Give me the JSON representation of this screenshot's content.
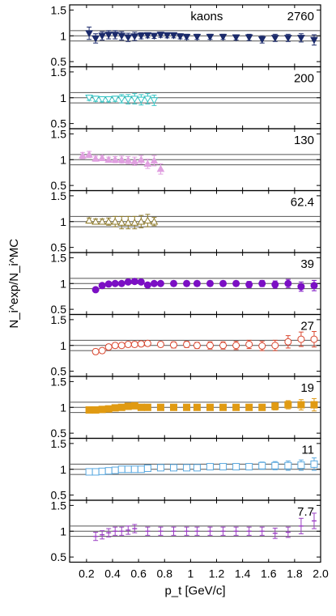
{
  "chart_data": {
    "type": "scatter",
    "title": "",
    "xlabel": "p_t [GeV/c]",
    "ylabel": "N_i^exp/N_i^MC",
    "xlim": [
      0.07,
      2.0
    ],
    "ylim": [
      0.4,
      1.6
    ],
    "x_ticks": [
      0.2,
      0.4,
      0.6,
      0.8,
      1.0,
      1.2,
      1.4,
      1.6,
      1.8,
      2.0
    ],
    "x_tick_labels": [
      "0.2",
      "0.4",
      "0.6",
      "0.8",
      "1",
      "1.2",
      "1.4",
      "1.6",
      "1.8",
      "2.0"
    ],
    "y_ticks": [
      0.5,
      1.0,
      1.5
    ],
    "y_tick_labels": [
      "0.5",
      "1",
      "1.5"
    ],
    "reference_lines": [
      0.9,
      1.0,
      1.1
    ],
    "species_label": "kaons",
    "panels": [
      {
        "label": "2760",
        "color": "#1b2a6b",
        "marker": "triangle-down-filled",
        "x": [
          0.22,
          0.27,
          0.32,
          0.37,
          0.42,
          0.47,
          0.52,
          0.57,
          0.62,
          0.67,
          0.72,
          0.77,
          0.82,
          0.87,
          0.92,
          0.97,
          1.05,
          1.15,
          1.25,
          1.35,
          1.45,
          1.55,
          1.65,
          1.75,
          1.85,
          1.95
        ],
        "y": [
          1.05,
          0.95,
          1.0,
          1.02,
          1.02,
          1.0,
          0.97,
          0.99,
          1.0,
          1.01,
          1.0,
          1.02,
          1.01,
          1.01,
          0.99,
          0.98,
          0.98,
          0.98,
          0.98,
          0.97,
          0.97,
          0.93,
          0.96,
          0.96,
          0.96,
          0.92
        ],
        "err": [
          0.12,
          0.09,
          0.08,
          0.08,
          0.08,
          0.08,
          0.08,
          0.08,
          0.06,
          0.05,
          0.05,
          0.05,
          0.05,
          0.05,
          0.05,
          0.05,
          0.05,
          0.05,
          0.05,
          0.05,
          0.06,
          0.07,
          0.07,
          0.07,
          0.08,
          0.1
        ]
      },
      {
        "label": "200",
        "color": "#33c4c4",
        "marker": "triangle-down-open",
        "x": [
          0.22,
          0.27,
          0.32,
          0.37,
          0.42,
          0.47,
          0.52,
          0.57,
          0.62,
          0.67,
          0.72
        ],
        "y": [
          1.0,
          0.98,
          0.97,
          0.97,
          0.98,
          0.98,
          0.97,
          0.98,
          0.96,
          0.98,
          0.95
        ],
        "err": [
          0.05,
          0.05,
          0.05,
          0.05,
          0.05,
          0.08,
          0.09,
          0.1,
          0.1,
          0.1,
          0.1
        ]
      },
      {
        "label": "130",
        "color": "#e0a0e0",
        "marker": "triangle-up-filled",
        "x": [
          0.17,
          0.22,
          0.27,
          0.32,
          0.37,
          0.42,
          0.47,
          0.52,
          0.57,
          0.62,
          0.67,
          0.72,
          0.77
        ],
        "y": [
          1.08,
          1.1,
          1.02,
          1.03,
          1.0,
          1.0,
          1.0,
          0.99,
          0.97,
          1.0,
          0.92,
          0.98,
          0.82
        ],
        "err": [
          0.06,
          0.06,
          0.05,
          0.05,
          0.05,
          0.06,
          0.07,
          0.07,
          0.08,
          0.08,
          0.09,
          0.1,
          0.1
        ]
      },
      {
        "label": "62.4",
        "color": "#8e7a2a",
        "marker": "triangle-up-open",
        "x": [
          0.22,
          0.27,
          0.32,
          0.37,
          0.42,
          0.47,
          0.52,
          0.57,
          0.62,
          0.67,
          0.72
        ],
        "y": [
          1.02,
          1.0,
          1.0,
          1.0,
          1.0,
          0.98,
          0.98,
          0.98,
          1.0,
          1.02,
          1.0
        ],
        "err": [
          0.05,
          0.05,
          0.05,
          0.07,
          0.1,
          0.12,
          0.12,
          0.12,
          0.12,
          0.12,
          0.08
        ]
      },
      {
        "label": "39",
        "color": "#7b0fc4",
        "marker": "circle-filled",
        "x": [
          0.27,
          0.32,
          0.37,
          0.42,
          0.47,
          0.52,
          0.57,
          0.62,
          0.67,
          0.72,
          0.77,
          0.87,
          0.97,
          1.05,
          1.15,
          1.25,
          1.35,
          1.45,
          1.55,
          1.65,
          1.75,
          1.85,
          1.95
        ],
        "y": [
          0.88,
          0.96,
          0.99,
          1.0,
          1.0,
          1.03,
          1.04,
          1.03,
          0.97,
          1.0,
          1.0,
          1.0,
          1.0,
          1.0,
          1.0,
          1.0,
          1.0,
          0.98,
          1.0,
          0.98,
          1.0,
          0.94,
          0.96
        ],
        "err": [
          0.04,
          0.04,
          0.04,
          0.04,
          0.04,
          0.04,
          0.04,
          0.04,
          0.04,
          0.04,
          0.04,
          0.05,
          0.05,
          0.05,
          0.05,
          0.05,
          0.05,
          0.06,
          0.06,
          0.07,
          0.08,
          0.09,
          0.1
        ]
      },
      {
        "label": "27",
        "color": "#d9462e",
        "marker": "circle-open",
        "x": [
          0.27,
          0.32,
          0.37,
          0.42,
          0.47,
          0.52,
          0.57,
          0.62,
          0.67,
          0.77,
          0.87,
          0.97,
          1.05,
          1.15,
          1.25,
          1.35,
          1.45,
          1.55,
          1.65,
          1.75,
          1.85,
          1.95
        ],
        "y": [
          0.88,
          0.9,
          0.97,
          1.0,
          1.0,
          1.02,
          1.02,
          1.03,
          1.04,
          1.02,
          1.01,
          1.02,
          1.0,
          1.0,
          1.0,
          1.0,
          1.02,
          0.99,
          1.0,
          1.07,
          1.12,
          1.12
        ],
        "err": [
          0.05,
          0.05,
          0.05,
          0.05,
          0.05,
          0.05,
          0.05,
          0.05,
          0.05,
          0.05,
          0.06,
          0.06,
          0.06,
          0.07,
          0.07,
          0.08,
          0.08,
          0.09,
          0.1,
          0.12,
          0.14,
          0.15
        ]
      },
      {
        "label": "19",
        "color": "#e09a12",
        "marker": "square-filled",
        "x": [
          0.22,
          0.27,
          0.32,
          0.37,
          0.42,
          0.47,
          0.52,
          0.57,
          0.62,
          0.67,
          0.77,
          0.87,
          0.97,
          1.05,
          1.15,
          1.25,
          1.35,
          1.45,
          1.55,
          1.65,
          1.75,
          1.85,
          1.95
        ],
        "y": [
          0.95,
          0.95,
          0.96,
          0.97,
          0.99,
          1.0,
          1.02,
          1.03,
          1.0,
          1.0,
          1.0,
          1.0,
          1.0,
          1.0,
          1.0,
          1.0,
          1.0,
          1.0,
          1.0,
          1.02,
          1.05,
          1.05,
          1.05
        ],
        "err": [
          0.04,
          0.04,
          0.04,
          0.04,
          0.04,
          0.04,
          0.04,
          0.04,
          0.04,
          0.04,
          0.04,
          0.04,
          0.05,
          0.05,
          0.05,
          0.05,
          0.05,
          0.05,
          0.06,
          0.07,
          0.08,
          0.1,
          0.12
        ]
      },
      {
        "label": "11",
        "color": "#5aa9e0",
        "marker": "square-open",
        "x": [
          0.22,
          0.27,
          0.32,
          0.37,
          0.42,
          0.47,
          0.52,
          0.57,
          0.62,
          0.67,
          0.77,
          0.87,
          0.97,
          1.05,
          1.15,
          1.25,
          1.35,
          1.45,
          1.55,
          1.65,
          1.75,
          1.85,
          1.95
        ],
        "y": [
          0.95,
          0.95,
          0.96,
          0.97,
          0.98,
          1.0,
          1.0,
          1.0,
          1.0,
          1.02,
          1.03,
          1.03,
          1.03,
          1.03,
          1.05,
          1.05,
          1.05,
          1.05,
          1.07,
          1.07,
          1.07,
          1.08,
          1.1
        ],
        "err": [
          0.04,
          0.04,
          0.04,
          0.04,
          0.04,
          0.04,
          0.04,
          0.04,
          0.04,
          0.04,
          0.04,
          0.04,
          0.05,
          0.05,
          0.05,
          0.05,
          0.06,
          0.06,
          0.07,
          0.08,
          0.09,
          0.1,
          0.12
        ]
      },
      {
        "label": "7.7",
        "color": "#9b3fc4",
        "marker": "bar",
        "x": [
          0.27,
          0.32,
          0.37,
          0.42,
          0.47,
          0.52,
          0.57,
          0.67,
          0.77,
          0.87,
          0.97,
          1.05,
          1.15,
          1.25,
          1.35,
          1.45,
          1.55,
          1.65,
          1.75,
          1.85,
          1.95
        ],
        "y": [
          0.9,
          0.93,
          0.97,
          1.0,
          1.0,
          1.02,
          1.05,
          1.0,
          1.0,
          1.0,
          1.0,
          1.0,
          1.0,
          1.0,
          1.0,
          1.0,
          1.0,
          0.96,
          0.98,
          1.1,
          1.2
        ],
        "err": [
          0.08,
          0.08,
          0.08,
          0.08,
          0.08,
          0.08,
          0.08,
          0.08,
          0.08,
          0.08,
          0.08,
          0.08,
          0.08,
          0.08,
          0.08,
          0.08,
          0.08,
          0.1,
          0.1,
          0.15,
          0.15
        ]
      }
    ]
  }
}
